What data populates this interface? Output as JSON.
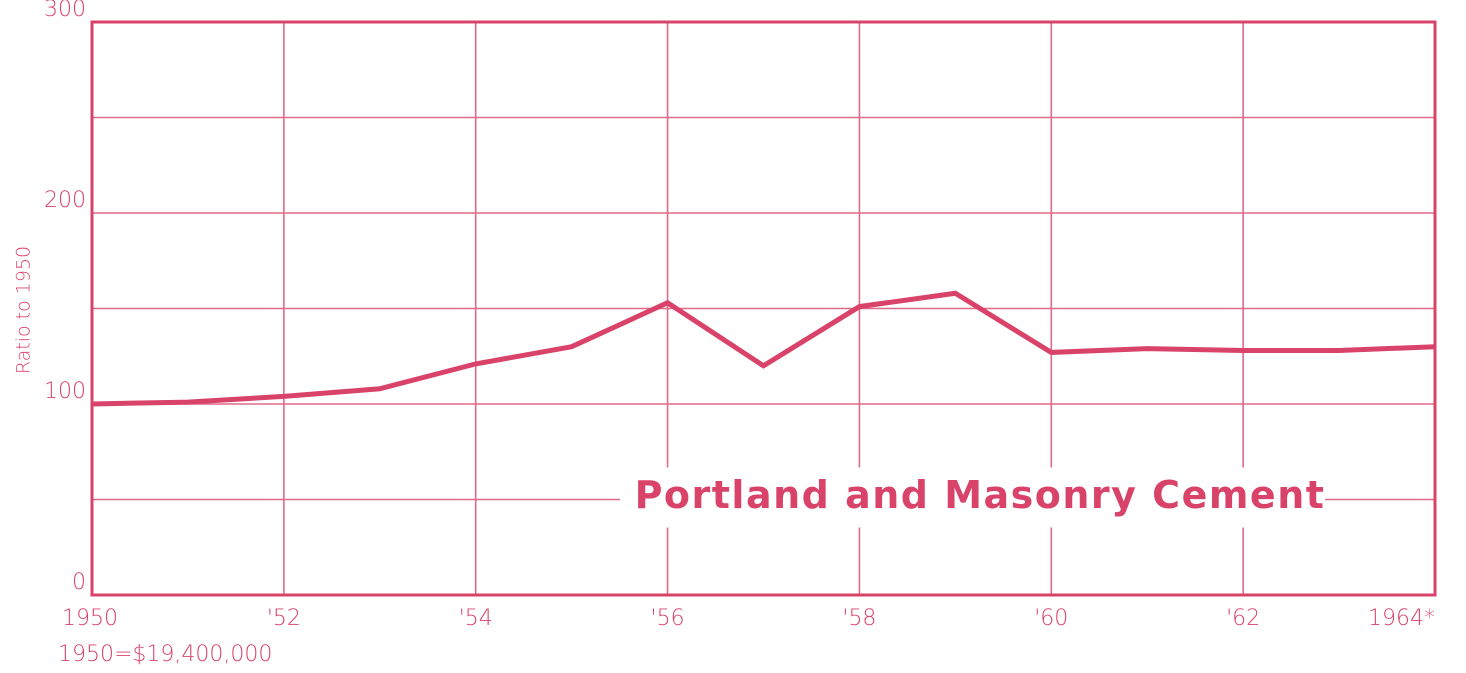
{
  "chart_data": {
    "type": "line",
    "title": "Portland and Masonry Cement",
    "y_label": "Ratio to 1950",
    "note": "1950=$19,400,000",
    "x": [
      1950,
      1951,
      1952,
      1953,
      1954,
      1955,
      1956,
      1957,
      1958,
      1959,
      1960,
      1961,
      1962,
      1963,
      1964
    ],
    "series": [
      {
        "name": "Portland and Masonry Cement",
        "color": "#d9436a",
        "values": [
          100,
          101,
          104,
          108,
          121,
          130,
          153,
          120,
          151,
          158,
          127,
          129,
          128,
          128,
          130
        ]
      }
    ],
    "xlim": [
      1950,
      1964
    ],
    "xticks": [
      1950,
      {
        "value": 1952,
        "label": "'52"
      },
      {
        "value": 1954,
        "label": "'54"
      },
      {
        "value": 1956,
        "label": "'56"
      },
      {
        "value": 1958,
        "label": "'58"
      },
      {
        "value": 1960,
        "label": "'60"
      },
      {
        "value": 1962,
        "label": "'62"
      },
      {
        "value": 1964,
        "label": "1964*"
      }
    ],
    "ylim": [
      0,
      300
    ],
    "yticks": [
      0,
      100,
      200,
      300
    ],
    "minor_yticks": [
      50,
      150,
      250
    ],
    "baseline": 100,
    "grid": true
  }
}
